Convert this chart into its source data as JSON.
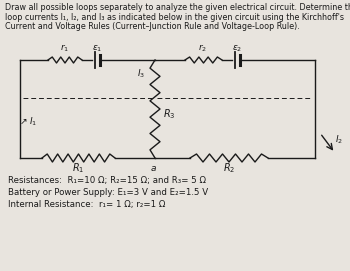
{
  "title_lines": [
    "Draw all possible loops separately to analyze the given electrical circuit. Determine the",
    "loop currents I₁, I₂, and I₃ as indicated below in the given circuit using the Kirchhoff's",
    "Current and Voltage Rules (Current–Junction Rule and Voltage-Loop Rule)."
  ],
  "info_lines": [
    "Resistances:  R₁=10 Ω; R₂=15 Ω; and R₃= 5 Ω",
    "Battery or Power Supply: E₁=3 V and E₂=1.5 V",
    "Internal Resistance:  r₁= 1 Ω; r₂=1 Ω"
  ],
  "bg_color": "#e8e4de",
  "text_color": "#1a1a1a",
  "wire_color": "#1a1a1a",
  "font_size_title": 5.8,
  "font_size_info": 6.2,
  "font_size_labels": 7.0
}
